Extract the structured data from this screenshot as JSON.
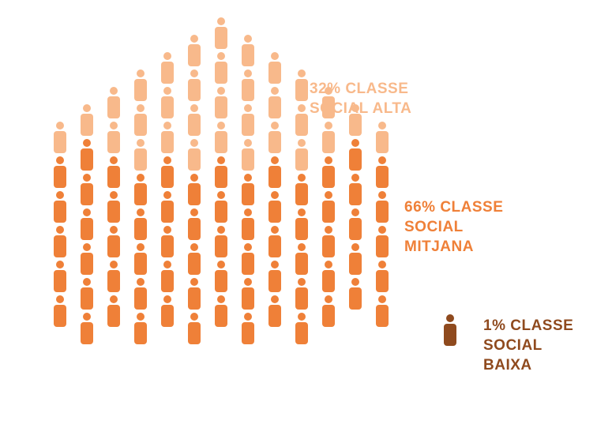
{
  "chart_data": {
    "type": "pictogram",
    "categories": [
      "CLASSE SOCIAL ALTA",
      "CLASSE SOCIAL MITJANA",
      "CLASSE SOCIAL BAIXA"
    ],
    "values": [
      32,
      66,
      1
    ],
    "value_labels": [
      "32%",
      "66%",
      "1%"
    ],
    "colors": [
      "#f8b98b",
      "#ef8038",
      "#8f4a1e"
    ]
  }
}
